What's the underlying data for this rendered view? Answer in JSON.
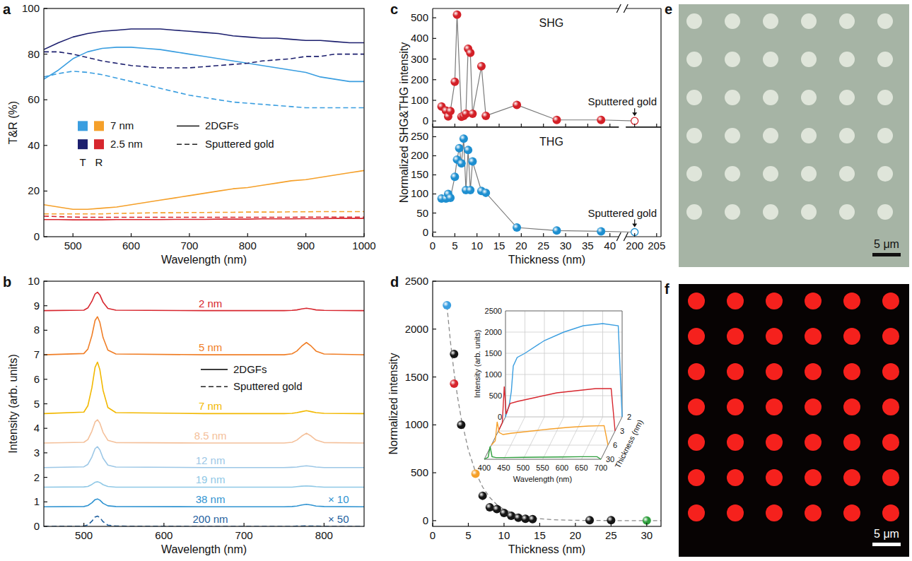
{
  "chart_data": [
    {
      "type": "line",
      "panel": "a",
      "xlabel": "Wavelength (nm)",
      "ylabel": "T&R (%)",
      "xlim": [
        450,
        1000
      ],
      "xticks": [
        500,
        600,
        700,
        800,
        900,
        1000
      ],
      "ylim": [
        0,
        100
      ],
      "yticks": [
        0,
        20,
        40,
        60,
        80,
        100
      ],
      "legend": "center left",
      "legend_items": {
        "thickness": [
          {
            "label": "7 nm",
            "colors": [
              "#3a9ee0",
              "#f5a02a"
            ]
          },
          {
            "label": "2.5 nm",
            "colors": [
              "#1c1f6e",
              "#d7262e"
            ]
          }
        ],
        "quantity": [
          "T",
          "R"
        ],
        "line_styles": [
          {
            "label": "2DGFs",
            "line_style": "solid"
          },
          {
            "label": "Sputtered gold",
            "line_style": "dashed"
          }
        ]
      },
      "x": [
        450,
        475,
        500,
        525,
        550,
        575,
        600,
        625,
        650,
        675,
        700,
        725,
        750,
        775,
        800,
        825,
        850,
        875,
        900,
        925,
        950,
        975,
        1000
      ],
      "series": [
        {
          "color": "#3a9ee0",
          "line_style": "solid",
          "values": [
            69,
            73,
            78,
            81,
            82.5,
            83,
            83,
            82.5,
            82,
            81,
            80,
            79,
            78,
            77,
            76,
            75,
            74,
            73,
            72,
            70,
            69,
            68,
            68
          ]
        },
        {
          "color": "#1c1f6e",
          "line_style": "solid",
          "values": [
            82,
            85,
            87.5,
            89,
            90,
            90.5,
            91,
            91,
            91,
            90.5,
            90,
            89.5,
            89,
            88,
            87.5,
            87,
            87,
            86.5,
            86,
            86,
            85.5,
            85,
            85
          ]
        },
        {
          "color": "#f5a02a",
          "line_style": "solid",
          "values": [
            14,
            13,
            12,
            12,
            12.5,
            13,
            14,
            15,
            16,
            17,
            18,
            19,
            20,
            21,
            21.5,
            22.5,
            23.5,
            24.5,
            25,
            26,
            27,
            28,
            29
          ]
        },
        {
          "color": "#d7262e",
          "line_style": "solid",
          "values": [
            7.5,
            7.5,
            7.4,
            7.4,
            7.4,
            7.5,
            7.5,
            7.5,
            7.5,
            7.6,
            7.6,
            7.6,
            7.7,
            7.7,
            7.7,
            7.8,
            7.8,
            7.8,
            7.9,
            7.9,
            8,
            8,
            8
          ]
        },
        {
          "color": "#3a9ee0",
          "line_style": "dashed",
          "values": [
            70,
            71.5,
            72.5,
            72,
            71,
            69.5,
            68,
            66.5,
            65,
            63.5,
            62,
            61,
            60,
            59,
            58.5,
            58,
            57.5,
            57,
            56.5,
            56.5,
            56.5,
            56.5,
            56.5
          ]
        },
        {
          "color": "#1c1f6e",
          "line_style": "dashed",
          "values": [
            81,
            81,
            80,
            78.5,
            77,
            76,
            75,
            74.5,
            74,
            74,
            74,
            74.5,
            75,
            75.5,
            76,
            77,
            77.5,
            78,
            79,
            79,
            80,
            80,
            80
          ]
        },
        {
          "color": "#f5a02a",
          "line_style": "dashed",
          "values": [
            10,
            10,
            10,
            10,
            10,
            10.2,
            10.3,
            10.4,
            10.5,
            10.5,
            10.6,
            10.6,
            10.7,
            10.7,
            10.8,
            10.8,
            10.8,
            10.9,
            10.9,
            11,
            11,
            11,
            11
          ]
        },
        {
          "color": "#d7262e",
          "line_style": "dashed",
          "values": [
            9,
            8.8,
            8.6,
            8.5,
            8.5,
            8.5,
            8.5,
            8.5,
            8.5,
            8.5,
            8.5,
            8.5,
            8.5,
            8.5,
            8.5,
            8.5,
            8.5,
            8.5,
            8.6,
            8.6,
            8.6,
            8.6,
            8.6
          ]
        }
      ]
    },
    {
      "type": "line",
      "panel": "b",
      "xlabel": "Wavelength (nm)",
      "ylabel": "Intensity (arb. units)",
      "xlim": [
        450,
        850
      ],
      "xticks": [
        500,
        600,
        700,
        800
      ],
      "ylim": [
        0,
        10
      ],
      "yticks": [
        0,
        1,
        2,
        3,
        4,
        5,
        6,
        7,
        8,
        9,
        10
      ],
      "legend": "center",
      "legend_items": [
        {
          "label": "2DGFs",
          "line_style": "solid"
        },
        {
          "label": "Sputtered gold",
          "line_style": "dashed"
        }
      ],
      "x": [
        450,
        500,
        505,
        510,
        514,
        517,
        520,
        524,
        530,
        540,
        650,
        750,
        760,
        766,
        772,
        778,
        784,
        790,
        800,
        850
      ],
      "series": [
        {
          "name": "2 nm",
          "color": "#d7262e",
          "line_style": "solid",
          "values": [
            8.8,
            8.82,
            8.91,
            9.18,
            9.48,
            9.55,
            9.44,
            9.14,
            8.89,
            8.82,
            8.8,
            8.8,
            8.81,
            8.83,
            8.87,
            8.9,
            8.87,
            8.83,
            8.81,
            8.8
          ]
        },
        {
          "name": "5 nm",
          "color": "#f07e26",
          "line_style": "solid",
          "values": [
            7.0,
            7.05,
            7.23,
            7.78,
            8.4,
            8.55,
            8.32,
            7.7,
            7.19,
            7.03,
            7.0,
            7.0,
            7.04,
            7.15,
            7.35,
            7.5,
            7.35,
            7.15,
            7.03,
            7.0
          ]
        },
        {
          "name": "7 nm",
          "color": "#f2b800",
          "line_style": "solid",
          "values": [
            4.6,
            4.66,
            4.92,
            5.65,
            6.49,
            6.7,
            6.39,
            5.55,
            4.85,
            4.64,
            4.6,
            4.6,
            4.61,
            4.64,
            4.68,
            4.72,
            4.68,
            4.64,
            4.61,
            4.6
          ]
        },
        {
          "name": "8.5 nm",
          "color": "#f4c09a",
          "line_style": "solid",
          "values": [
            3.4,
            3.43,
            3.54,
            3.88,
            4.26,
            4.35,
            4.21,
            3.83,
            3.51,
            3.42,
            3.4,
            3.4,
            3.43,
            3.52,
            3.68,
            3.8,
            3.68,
            3.52,
            3.42,
            3.4
          ]
        },
        {
          "name": "12 nm",
          "color": "#9cc7e6",
          "line_style": "solid",
          "values": [
            2.4,
            2.43,
            2.53,
            2.83,
            3.17,
            3.25,
            3.12,
            2.78,
            2.5,
            2.42,
            2.4,
            2.4,
            2.41,
            2.42,
            2.45,
            2.47,
            2.45,
            2.42,
            2.4,
            2.4
          ]
        },
        {
          "name": "19 nm",
          "color": "#8fc8e6",
          "line_style": "solid",
          "values": [
            1.6,
            1.61,
            1.63,
            1.71,
            1.8,
            1.82,
            1.79,
            1.7,
            1.63,
            1.6,
            1.6,
            1.6,
            1.6,
            1.62,
            1.64,
            1.65,
            1.64,
            1.62,
            1.6,
            1.6
          ]
        },
        {
          "name": "38 nm",
          "color": "#2f93d1",
          "line_style": "solid",
          "annotation": "× 10",
          "values": [
            0.8,
            0.81,
            0.85,
            0.96,
            1.09,
            1.12,
            1.07,
            0.94,
            0.84,
            0.81,
            0.8,
            0.8,
            0.81,
            0.83,
            0.87,
            0.9,
            0.87,
            0.83,
            0.81,
            0.8
          ]
        },
        {
          "name": "200 nm",
          "color": "#1f5f9e",
          "line_style": "dashed",
          "annotation": "× 50",
          "values": [
            0,
            0.01,
            0.06,
            0.21,
            0.38,
            0.42,
            0.36,
            0.19,
            0.05,
            0.01,
            0,
            0,
            0,
            0.01,
            0.01,
            0.02,
            0.01,
            0.01,
            0,
            0
          ]
        }
      ]
    },
    {
      "type": "line",
      "panel": "c",
      "xlabel": "Thickness (nm)",
      "ylabel": "Normalized SHG&THG intensity",
      "xlim": [
        0,
        206
      ],
      "x_break": [
        42,
        198
      ],
      "xticks": [
        0,
        5,
        10,
        15,
        20,
        25,
        30,
        35,
        40,
        200,
        205
      ],
      "color": "#7a7a7a",
      "line_style": "solid",
      "subplots": [
        {
          "title": "SHG",
          "ylim": [
            -30,
            545
          ],
          "yticks": [
            0,
            100,
            200,
            300,
            400,
            500
          ],
          "series": [
            {
              "x": [
                2,
                3,
                3.5,
                4,
                5,
                5.5,
                6.5,
                7,
                7.5,
                8,
                8.5,
                9,
                11,
                12,
                19,
                28,
                38
              ],
              "values": [
                70,
                50,
                22,
                48,
                190,
                515,
                20,
                25,
                35,
                350,
                330,
                35,
                265,
                25,
                78,
                5,
                5
              ],
              "color": "#d32027",
              "marker": "circle"
            },
            {
              "name": "Sputtered gold",
              "x": [
                200
              ],
              "values": [
                0
              ],
              "color": "#d32027",
              "marker": "open"
            }
          ]
        },
        {
          "title": "THG",
          "ylim": [
            -12,
            275
          ],
          "yticks": [
            0,
            50,
            100,
            150,
            200,
            250
          ],
          "series": [
            {
              "x": [
                2,
                3,
                3.5,
                4,
                5,
                5.5,
                6,
                6.5,
                7,
                7.5,
                8,
                8.5,
                9,
                11,
                12,
                19,
                28,
                38
              ],
              "values": [
                88,
                88,
                100,
                90,
                145,
                190,
                220,
                180,
                245,
                110,
                215,
                110,
                185,
                108,
                103,
                12,
                4,
                2
              ],
              "color": "#1e8fd0",
              "marker": "circle"
            },
            {
              "name": "Sputtered gold",
              "x": [
                200
              ],
              "values": [
                0
              ],
              "color": "#1e8fd0",
              "marker": "open"
            }
          ]
        }
      ]
    },
    {
      "type": "scatter",
      "panel": "d",
      "xlabel": "Thickness (nm)",
      "ylabel": "Normalized intensity",
      "xlim": [
        0,
        32
      ],
      "xticks": [
        0,
        5,
        10,
        15,
        20,
        25,
        30
      ],
      "ylim": [
        -60,
        2500
      ],
      "yticks": [
        0,
        500,
        1000,
        1500,
        2000,
        2500
      ],
      "series": [
        {
          "type": "line",
          "color": "#8a8a8a",
          "line_style": "dashed",
          "x": [
            2,
            2.5,
            3,
            3.5,
            4,
            5,
            6,
            7,
            8,
            9,
            10,
            12,
            14,
            17,
            20,
            25,
            32
          ],
          "values": [
            2243,
            1862,
            1547,
            1286,
            1068,
            738,
            509,
            351,
            242,
            167,
            116,
            55,
            26,
            9,
            3,
            0.5,
            0
          ]
        },
        {
          "type": "scatter",
          "marker": "circle",
          "x": [
            2,
            3,
            3,
            4,
            6,
            7,
            8,
            9,
            10,
            11,
            12,
            13,
            14,
            22,
            25,
            30
          ],
          "values": [
            2250,
            1740,
            1430,
            1000,
            490,
            260,
            140,
            120,
            80,
            50,
            30,
            20,
            15,
            5,
            5,
            0
          ],
          "colors": [
            "#3a9ee0",
            "#151515",
            "#d7262e",
            "#151515",
            "#f5a02a",
            "#151515",
            "#151515",
            "#151515",
            "#151515",
            "#151515",
            "#151515",
            "#151515",
            "#151515",
            "#151515",
            "#151515",
            "#2e9e3c"
          ]
        }
      ],
      "inset": {
        "type": "line",
        "xlabel": "Wavelength (nm)",
        "ylabel": "Intensity (arb. units)",
        "zlabel": "Thickness (nm)",
        "xlim": [
          400,
          700
        ],
        "xticks": [
          400,
          450,
          500,
          550,
          600,
          650,
          700
        ],
        "ylim": [
          0,
          2500
        ],
        "yticks": [
          0,
          500,
          1000,
          1500,
          2000,
          2500
        ],
        "zticks": [
          2,
          3,
          6,
          30
        ],
        "x": [
          400,
          410,
          415,
          420,
          430,
          450,
          500,
          550,
          600,
          650,
          690,
          700
        ],
        "series": [
          {
            "color": "#3a9ee0",
            "values": [
              0,
              300,
              600,
              1200,
              1400,
              1500,
              1800,
              2000,
              2150,
              2200,
              2150,
              0
            ]
          },
          {
            "color": "#d7262e",
            "values": [
              0,
              200,
              1050,
              400,
              650,
              700,
              800,
              900,
              950,
              1000,
              1000,
              0
            ]
          },
          {
            "color": "#f5a02a",
            "values": [
              0,
              100,
              550,
              300,
              250,
              280,
              330,
              380,
              420,
              450,
              460,
              0
            ]
          },
          {
            "color": "#2e9e3c",
            "values": [
              0,
              50,
              300,
              60,
              40,
              40,
              45,
              50,
              55,
              60,
              60,
              0
            ]
          }
        ]
      }
    },
    {
      "type": "image",
      "panel": "e",
      "scale_bar": "5 μm",
      "colors": [
        "#a6b4a5",
        "#dfe5da",
        "#111111"
      ]
    },
    {
      "type": "image",
      "panel": "f",
      "scale_bar": "5 μm",
      "colors": [
        "#070303",
        "#f5211d",
        "#ffffff"
      ]
    }
  ]
}
